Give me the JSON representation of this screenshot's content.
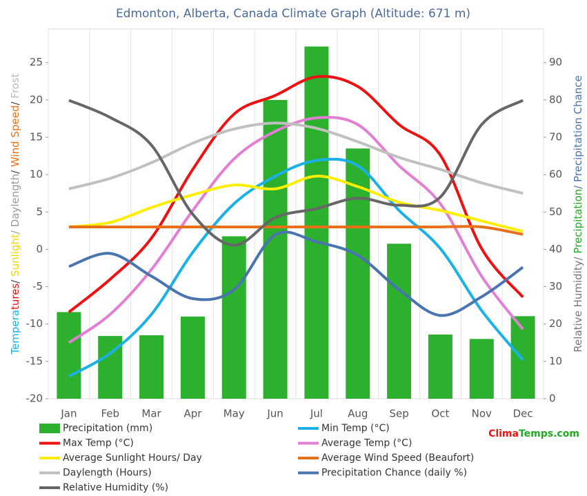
{
  "chart_data": {
    "type": "combo",
    "title": "Edmonton, Alberta, Canada Climate Graph (Altitude: 671 m)",
    "left_axis_title": [
      {
        "text": "Tempera",
        "color": "#1ab0e8"
      },
      {
        "text": "tures",
        "color": "#ee1111"
      },
      {
        "text": "/ ",
        "color": "#444444"
      },
      {
        "text": "Sunlight",
        "color": "#f0d800"
      },
      {
        "text": "/ Daylength",
        "color": "#999999"
      },
      {
        "text": "/ ",
        "color": "#444444"
      },
      {
        "text": "Wind Speed",
        "color": "#e8701a"
      },
      {
        "text": "/ ",
        "color": "#444444"
      },
      {
        "text": "Frost",
        "color": "#bbbbbb"
      }
    ],
    "right_axis_title": [
      {
        "text": "Relative Humidity/ ",
        "color": "#777777"
      },
      {
        "text": "Precipitation",
        "color": "#22aa22"
      },
      {
        "text": "/ Precipitation Chance",
        "color": "#4a74b0"
      }
    ],
    "watermark": [
      {
        "text": "Clima",
        "color": "#ee1111"
      },
      {
        "text": "Temps.com",
        "color": "#22aa22"
      }
    ],
    "categories": [
      "Jan",
      "Feb",
      "Mar",
      "Apr",
      "May",
      "Jun",
      "Jul",
      "Aug",
      "Sep",
      "Oct",
      "Nov",
      "Dec"
    ],
    "ylim": [
      -20,
      29.5
    ],
    "yticks": [
      -20,
      -15,
      -10,
      -5,
      0,
      5,
      10,
      15,
      20,
      25
    ],
    "y2lim": [
      0,
      99
    ],
    "y2ticks": [
      0,
      10,
      20,
      30,
      40,
      50,
      60,
      70,
      80,
      90
    ],
    "series": [
      {
        "name": "Precipitation (mm)",
        "type": "bar",
        "axis": "y2",
        "color": "#2db02d",
        "values": [
          23.2,
          16.8,
          17,
          22,
          43.5,
          80,
          94.3,
          67,
          41.5,
          17.2,
          16,
          22.1
        ]
      },
      {
        "name": "Min Temp (°C)",
        "type": "line",
        "color": "#1ab0e8",
        "values": [
          -17,
          -13.9,
          -8.7,
          -0.4,
          6.1,
          9.8,
          11.9,
          11.2,
          5.2,
          0.1,
          -8.2,
          -14.8
        ]
      },
      {
        "name": "Max Temp (°C)",
        "type": "line",
        "color": "#ee1111",
        "values": [
          -8.4,
          -4,
          1.5,
          10.7,
          18.1,
          20.6,
          23.1,
          21.8,
          16.7,
          12.6,
          0.1,
          -6.4
        ]
      },
      {
        "name": "Average Temp (°C)",
        "type": "line",
        "color": "#e27fd4",
        "values": [
          -12.5,
          -8.7,
          -2.7,
          5.2,
          12.1,
          15.8,
          17.6,
          16.7,
          11.2,
          6.1,
          -3.6,
          -10.7
        ]
      },
      {
        "name": "Average Sunlight Hours/ Day",
        "type": "line",
        "color": "#ffee00",
        "values": [
          3,
          3.6,
          5.6,
          7.3,
          8.6,
          8.1,
          9.8,
          8.4,
          6.3,
          5.2,
          3.8,
          2.4
        ]
      },
      {
        "name": "Average Wind Speed (Beaufort)",
        "type": "line",
        "color": "#e8701a",
        "values": [
          3,
          3,
          3,
          3,
          3,
          3,
          3,
          3,
          3,
          3,
          3,
          2
        ]
      },
      {
        "name": "Daylength (Hours)",
        "type": "line",
        "color": "#c0c0c0",
        "values": [
          8.1,
          9.5,
          11.6,
          14.2,
          16.1,
          16.9,
          16.2,
          14.4,
          12.3,
          10.7,
          8.9,
          7.5
        ]
      },
      {
        "name": "Precipitation Chance (daily %)",
        "type": "line",
        "axis": "y2",
        "color": "#4a74b0",
        "values": [
          35.4,
          38.9,
          32.8,
          26.8,
          29.2,
          43.9,
          42,
          38.4,
          29.2,
          22.3,
          27.3,
          35.2
        ]
      },
      {
        "name": "Relative Humidity (%)",
        "type": "line",
        "axis": "y2",
        "color": "#666666",
        "values": [
          79.9,
          75.3,
          67.9,
          49.4,
          41.1,
          48.5,
          50.9,
          53.7,
          51.8,
          54,
          73.4,
          79.9
        ]
      }
    ]
  }
}
